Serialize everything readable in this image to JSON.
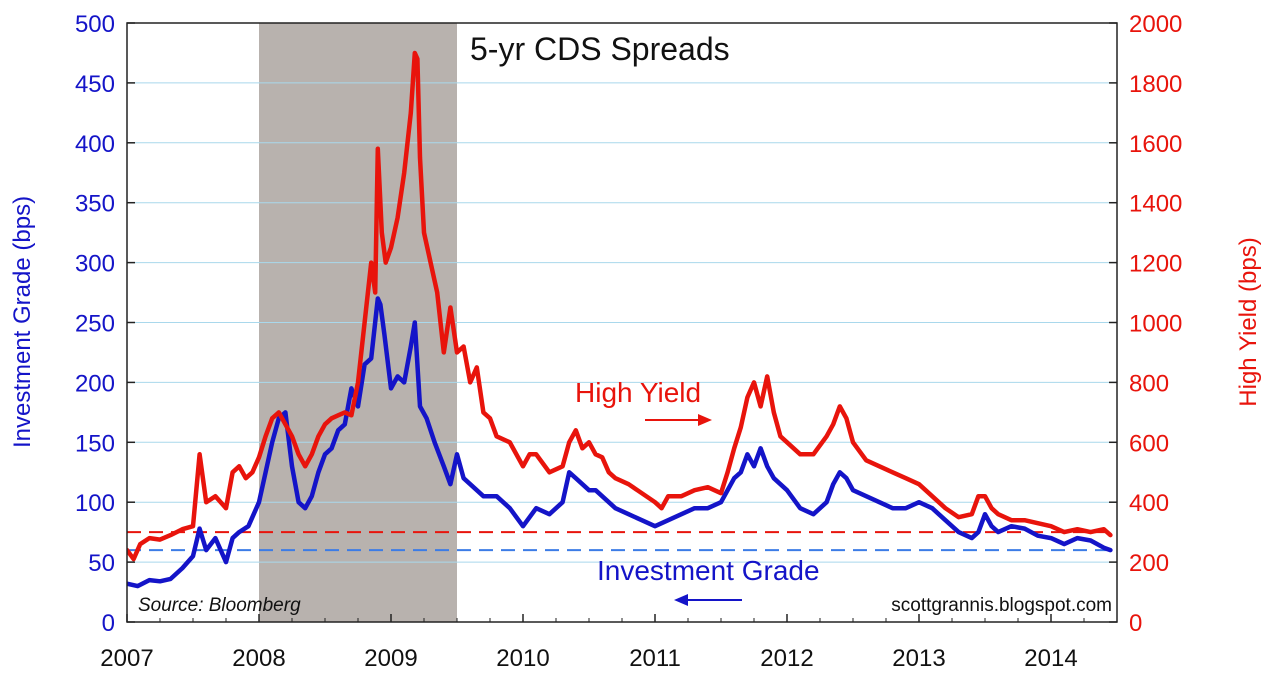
{
  "chart_data": {
    "type": "line",
    "title": "5-yr CDS Spreads",
    "ylabel_left": "Investment Grade (bps)",
    "ylabel_right": "High Yield (bps)",
    "ylim_left": [
      0,
      500
    ],
    "ylim_right": [
      0,
      2000
    ],
    "yticks_left": [
      "0",
      "50",
      "100",
      "150",
      "200",
      "250",
      "300",
      "350",
      "400",
      "450",
      "500"
    ],
    "yticks_right": [
      "0",
      "200",
      "400",
      "600",
      "800",
      "1000",
      "1200",
      "1400",
      "1600",
      "1800",
      "2000"
    ],
    "xlim": [
      2007.0,
      2014.5
    ],
    "xticks": [
      "2007",
      "2008",
      "2009",
      "2010",
      "2011",
      "2012",
      "2013",
      "2014"
    ],
    "grid": true,
    "recession_shading": {
      "start": 2008.0,
      "end": 2009.5,
      "color": "#b8b2ae"
    },
    "source": "Source: Bloomberg",
    "credit": "scottgrannis.blog​spot.com",
    "annotations": {
      "high_yield": "High Yield",
      "investment_grade": "Investment Grade"
    },
    "reference_lines": [
      {
        "name": "High Yield reference",
        "axis": "right",
        "value": 300,
        "color": "#e8140c"
      },
      {
        "name": "Investment Grade reference",
        "axis": "left",
        "value": 60,
        "color": "#3c7ce6"
      }
    ],
    "series": [
      {
        "name": "Investment Grade",
        "axis": "left",
        "color": "#1414c8",
        "x": [
          2007.0,
          2007.08,
          2007.17,
          2007.25,
          2007.33,
          2007.42,
          2007.5,
          2007.55,
          2007.6,
          2007.67,
          2007.75,
          2007.8,
          2007.85,
          2007.92,
          2008.0,
          2008.05,
          2008.1,
          2008.15,
          2008.2,
          2008.25,
          2008.3,
          2008.35,
          2008.4,
          2008.45,
          2008.5,
          2008.55,
          2008.6,
          2008.65,
          2008.7,
          2008.75,
          2008.8,
          2008.85,
          2008.9,
          2008.92,
          2008.95,
          2009.0,
          2009.05,
          2009.1,
          2009.15,
          2009.18,
          2009.22,
          2009.27,
          2009.33,
          2009.4,
          2009.45,
          2009.5,
          2009.55,
          2009.6,
          2009.65,
          2009.7,
          2009.75,
          2009.8,
          2009.85,
          2009.9,
          2010.0,
          2010.1,
          2010.2,
          2010.3,
          2010.35,
          2010.4,
          2010.45,
          2010.5,
          2010.55,
          2010.6,
          2010.65,
          2010.7,
          2010.8,
          2010.9,
          2011.0,
          2011.1,
          2011.2,
          2011.3,
          2011.4,
          2011.5,
          2011.55,
          2011.6,
          2011.65,
          2011.7,
          2011.75,
          2011.8,
          2011.85,
          2011.9,
          2011.95,
          2012.0,
          2012.1,
          2012.2,
          2012.3,
          2012.35,
          2012.4,
          2012.45,
          2012.5,
          2012.6,
          2012.7,
          2012.8,
          2012.9,
          2013.0,
          2013.1,
          2013.2,
          2013.3,
          2013.4,
          2013.45,
          2013.5,
          2013.55,
          2013.6,
          2013.7,
          2013.8,
          2013.9,
          2014.0,
          2014.1,
          2014.2,
          2014.3,
          2014.4,
          2014.45
        ],
        "values": [
          32,
          30,
          35,
          34,
          36,
          45,
          55,
          78,
          60,
          70,
          50,
          70,
          75,
          80,
          100,
          125,
          150,
          170,
          175,
          130,
          100,
          95,
          105,
          125,
          140,
          145,
          160,
          165,
          195,
          180,
          215,
          220,
          270,
          265,
          240,
          195,
          205,
          200,
          230,
          250,
          180,
          170,
          150,
          130,
          115,
          140,
          120,
          115,
          110,
          105,
          105,
          105,
          100,
          95,
          80,
          95,
          90,
          100,
          125,
          120,
          115,
          110,
          110,
          105,
          100,
          95,
          90,
          85,
          80,
          85,
          90,
          95,
          95,
          100,
          110,
          120,
          125,
          140,
          130,
          145,
          130,
          120,
          115,
          110,
          95,
          90,
          100,
          115,
          125,
          120,
          110,
          105,
          100,
          95,
          95,
          100,
          95,
          85,
          75,
          70,
          75,
          90,
          80,
          75,
          80,
          78,
          72,
          70,
          65,
          70,
          68,
          62,
          60
        ]
      },
      {
        "name": "High Yield",
        "axis": "right",
        "color": "#e8140c",
        "x": [
          2007.0,
          2007.05,
          2007.1,
          2007.17,
          2007.25,
          2007.33,
          2007.42,
          2007.5,
          2007.55,
          2007.6,
          2007.67,
          2007.75,
          2007.8,
          2007.85,
          2007.9,
          2007.95,
          2008.0,
          2008.05,
          2008.1,
          2008.15,
          2008.2,
          2008.25,
          2008.3,
          2008.35,
          2008.4,
          2008.45,
          2008.5,
          2008.55,
          2008.6,
          2008.65,
          2008.7,
          2008.75,
          2008.8,
          2008.85,
          2008.88,
          2008.9,
          2008.93,
          2008.96,
          2009.0,
          2009.05,
          2009.1,
          2009.15,
          2009.18,
          2009.2,
          2009.22,
          2009.25,
          2009.3,
          2009.35,
          2009.4,
          2009.45,
          2009.5,
          2009.55,
          2009.6,
          2009.65,
          2009.7,
          2009.75,
          2009.8,
          2009.9,
          2010.0,
          2010.05,
          2010.1,
          2010.2,
          2010.3,
          2010.35,
          2010.4,
          2010.45,
          2010.5,
          2010.55,
          2010.6,
          2010.65,
          2010.7,
          2010.8,
          2010.9,
          2011.0,
          2011.05,
          2011.1,
          2011.2,
          2011.3,
          2011.4,
          2011.5,
          2011.55,
          2011.6,
          2011.65,
          2011.7,
          2011.75,
          2011.8,
          2011.85,
          2011.9,
          2011.95,
          2012.0,
          2012.1,
          2012.2,
          2012.3,
          2012.35,
          2012.4,
          2012.45,
          2012.5,
          2012.6,
          2012.7,
          2012.8,
          2012.9,
          2013.0,
          2013.1,
          2013.2,
          2013.3,
          2013.4,
          2013.45,
          2013.5,
          2013.55,
          2013.6,
          2013.7,
          2013.8,
          2013.9,
          2014.0,
          2014.1,
          2014.2,
          2014.3,
          2014.4,
          2014.45
        ],
        "values": [
          240,
          210,
          260,
          280,
          275,
          290,
          310,
          320,
          560,
          400,
          420,
          380,
          500,
          520,
          480,
          500,
          550,
          620,
          680,
          700,
          660,
          620,
          560,
          520,
          560,
          620,
          660,
          680,
          690,
          700,
          690,
          800,
          1000,
          1200,
          1100,
          1580,
          1300,
          1200,
          1250,
          1350,
          1500,
          1700,
          1900,
          1880,
          1550,
          1300,
          1200,
          1100,
          900,
          1050,
          900,
          920,
          800,
          850,
          700,
          680,
          620,
          600,
          520,
          560,
          560,
          500,
          520,
          600,
          640,
          580,
          600,
          560,
          550,
          500,
          480,
          460,
          430,
          400,
          380,
          420,
          420,
          440,
          450,
          430,
          500,
          580,
          650,
          750,
          800,
          720,
          820,
          700,
          620,
          600,
          560,
          560,
          620,
          660,
          720,
          680,
          600,
          540,
          520,
          500,
          480,
          460,
          420,
          380,
          350,
          360,
          420,
          420,
          380,
          360,
          340,
          340,
          330,
          320,
          300,
          310,
          300,
          310,
          290
        ]
      }
    ]
  }
}
